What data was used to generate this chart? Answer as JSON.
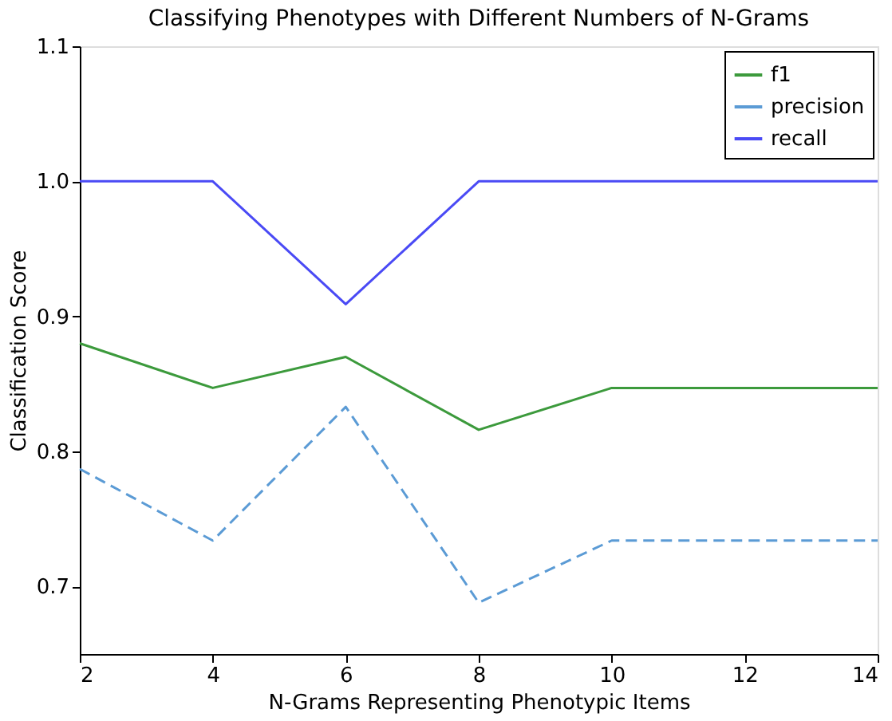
{
  "chart_data": {
    "type": "line",
    "title": "Classifying Phenotypes with Different Numbers of N-Grams",
    "xlabel": "N-Grams Representing Phenotypic Items",
    "ylabel": "Classification Score",
    "x": [
      2,
      4,
      6,
      8,
      10,
      12,
      14
    ],
    "series": [
      {
        "name": "f1",
        "color": "#3c9a3c",
        "line_style": "solid",
        "values": [
          0.88,
          0.847,
          0.87,
          0.816,
          0.847,
          0.847,
          0.847
        ]
      },
      {
        "name": "precision",
        "color": "#5b9bd5",
        "line_style": "dashed",
        "values": [
          0.787,
          0.734,
          0.833,
          0.688,
          0.734,
          0.734,
          0.734
        ]
      },
      {
        "name": "recall",
        "color": "#4a4af5",
        "line_style": "solid",
        "values": [
          1.0,
          1.0,
          0.909,
          1.0,
          1.0,
          1.0,
          1.0
        ]
      }
    ],
    "xlim": [
      2,
      14
    ],
    "xticks": [
      2,
      4,
      6,
      8,
      10,
      12,
      14
    ],
    "ylim": [
      0.65,
      1.1
    ],
    "yticks": [
      0.7,
      0.8,
      0.9,
      {
        "value": 1.0,
        "label": "1.0"
      },
      1.1
    ],
    "grid": false,
    "legend": "top right",
    "marker": "none"
  }
}
